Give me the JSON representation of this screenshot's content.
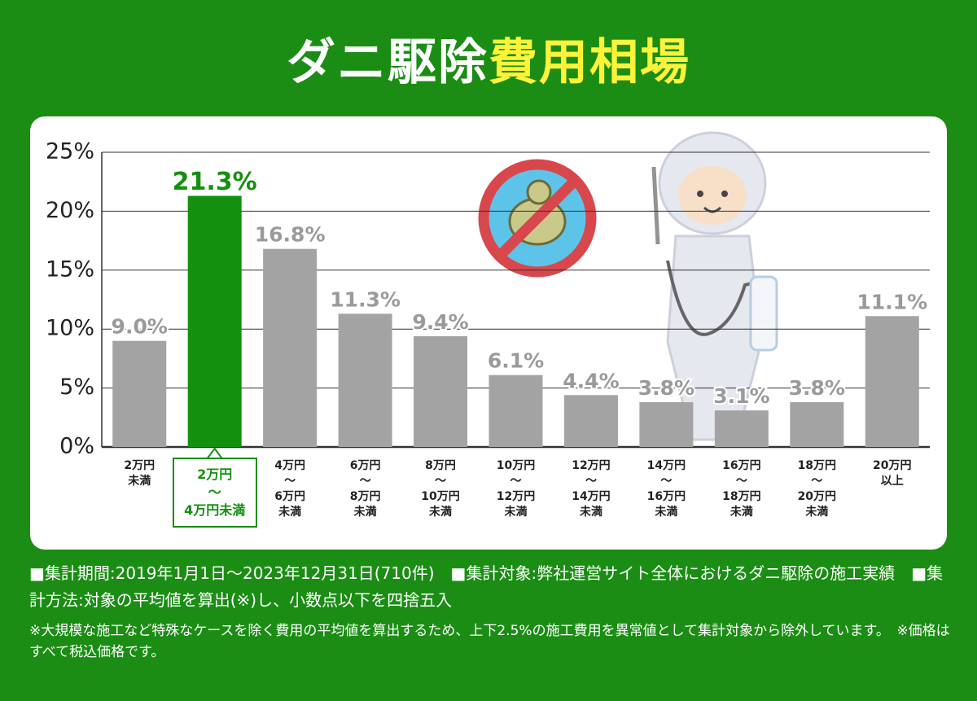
{
  "chart_data": {
    "type": "bar",
    "title_parts": [
      "ダニ駆除",
      "費用相場"
    ],
    "categories": [
      "2万円\n未満",
      "2万円\n〜\n4万円未満",
      "4万円\n〜\n6万円\n未満",
      "6万円\n〜\n8万円\n未満",
      "8万円\n〜\n10万円\n未満",
      "10万円\n〜\n12万円\n未満",
      "12万円\n〜\n14万円\n未満",
      "14万円\n〜\n16万円\n未満",
      "16万円\n〜\n18万円\n未満",
      "18万円\n〜\n20万円\n未満",
      "20万円\n以上"
    ],
    "values": [
      9.0,
      21.3,
      16.8,
      11.3,
      9.4,
      6.1,
      4.4,
      3.8,
      3.1,
      3.8,
      11.1
    ],
    "value_labels": [
      "9.0%",
      "21.3%",
      "16.8%",
      "11.3%",
      "9.4%",
      "6.1%",
      "4.4%",
      "3.8%",
      "3.1%",
      "3.8%",
      "11.1%"
    ],
    "colors": [
      "#a3a3a3",
      "#14900f",
      "#a3a3a3",
      "#a3a3a3",
      "#a3a3a3",
      "#a3a3a3",
      "#a3a3a3",
      "#a3a3a3",
      "#a3a3a3",
      "#a3a3a3",
      "#a3a3a3"
    ],
    "ylim": [
      0,
      25
    ],
    "yticks": [
      {
        "value": 0,
        "label": "0%"
      },
      {
        "value": 5,
        "label": "5%"
      },
      {
        "value": 10,
        "label": "10%"
      },
      {
        "value": 15,
        "label": "15%"
      },
      {
        "value": 20,
        "label": "20%"
      },
      {
        "value": 25,
        "label": "25%"
      }
    ],
    "grid": true,
    "notes": [
      "■集計期間:2019年1月1日〜2023年12月31日(710件)　■集計対象:弊社運営サイト全体におけるダニ駆除の施工実績　■集計方法:対象の平均値を算出(※)し、小数点以下を四捨五入",
      "※大規模な施工など特殊なケースを除く費用の平均値を算出するため、上下2.5%の施工費用を異常値として集計対象から除外しています。　※価格はすべて税込価格です。"
    ]
  }
}
